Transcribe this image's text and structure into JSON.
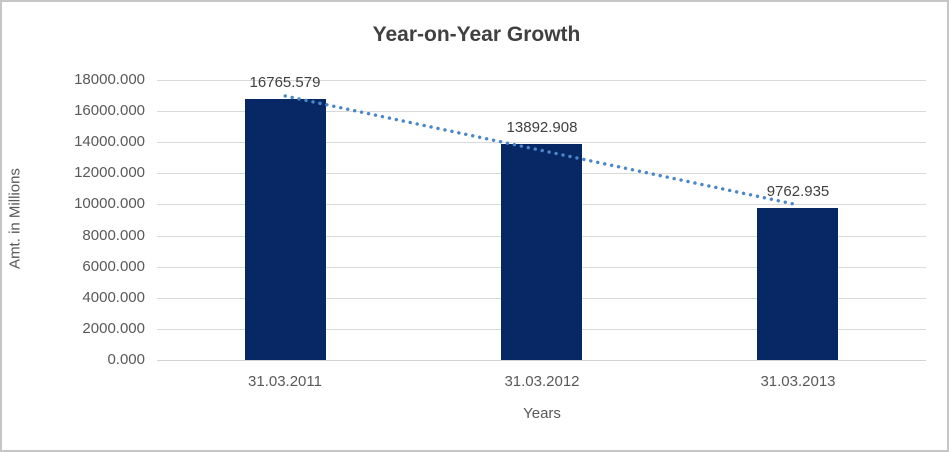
{
  "chart": {
    "title": "Year-on-Year Growth",
    "x_axis_title": "Years",
    "y_axis_title": "Amt. in Millions"
  },
  "chart_data": {
    "type": "bar",
    "title": "Year-on-Year Growth",
    "xlabel": "Years",
    "ylabel": "Amt. in Millions",
    "categories": [
      "31.03.2011",
      "31.03.2012",
      "31.03.2013"
    ],
    "values": [
      16765.579,
      13892.908,
      9762.935
    ],
    "data_labels": [
      "16765.579",
      "13892.908",
      "9762.935"
    ],
    "y_tick_labels": [
      "18000.000",
      "16000.000",
      "14000.000",
      "12000.000",
      "10000.000",
      "8000.000",
      "6000.000",
      "4000.000",
      "2000.000",
      "0.000"
    ],
    "ylim": [
      0,
      18000
    ],
    "y_step": 2000,
    "grid": true,
    "legend_position": "none",
    "trendline": {
      "type": "linear",
      "style": "dotted"
    },
    "colors": {
      "bar_fill": "#082765",
      "trendline": "#4a86c8",
      "gridline": "#d9d9d9",
      "axis_line": "#d2d2d2",
      "title_text": "#404040",
      "data_label_text": "#404040",
      "tick_text": "#595959",
      "border": "#c6c6c6",
      "background": "#ffffff"
    }
  }
}
